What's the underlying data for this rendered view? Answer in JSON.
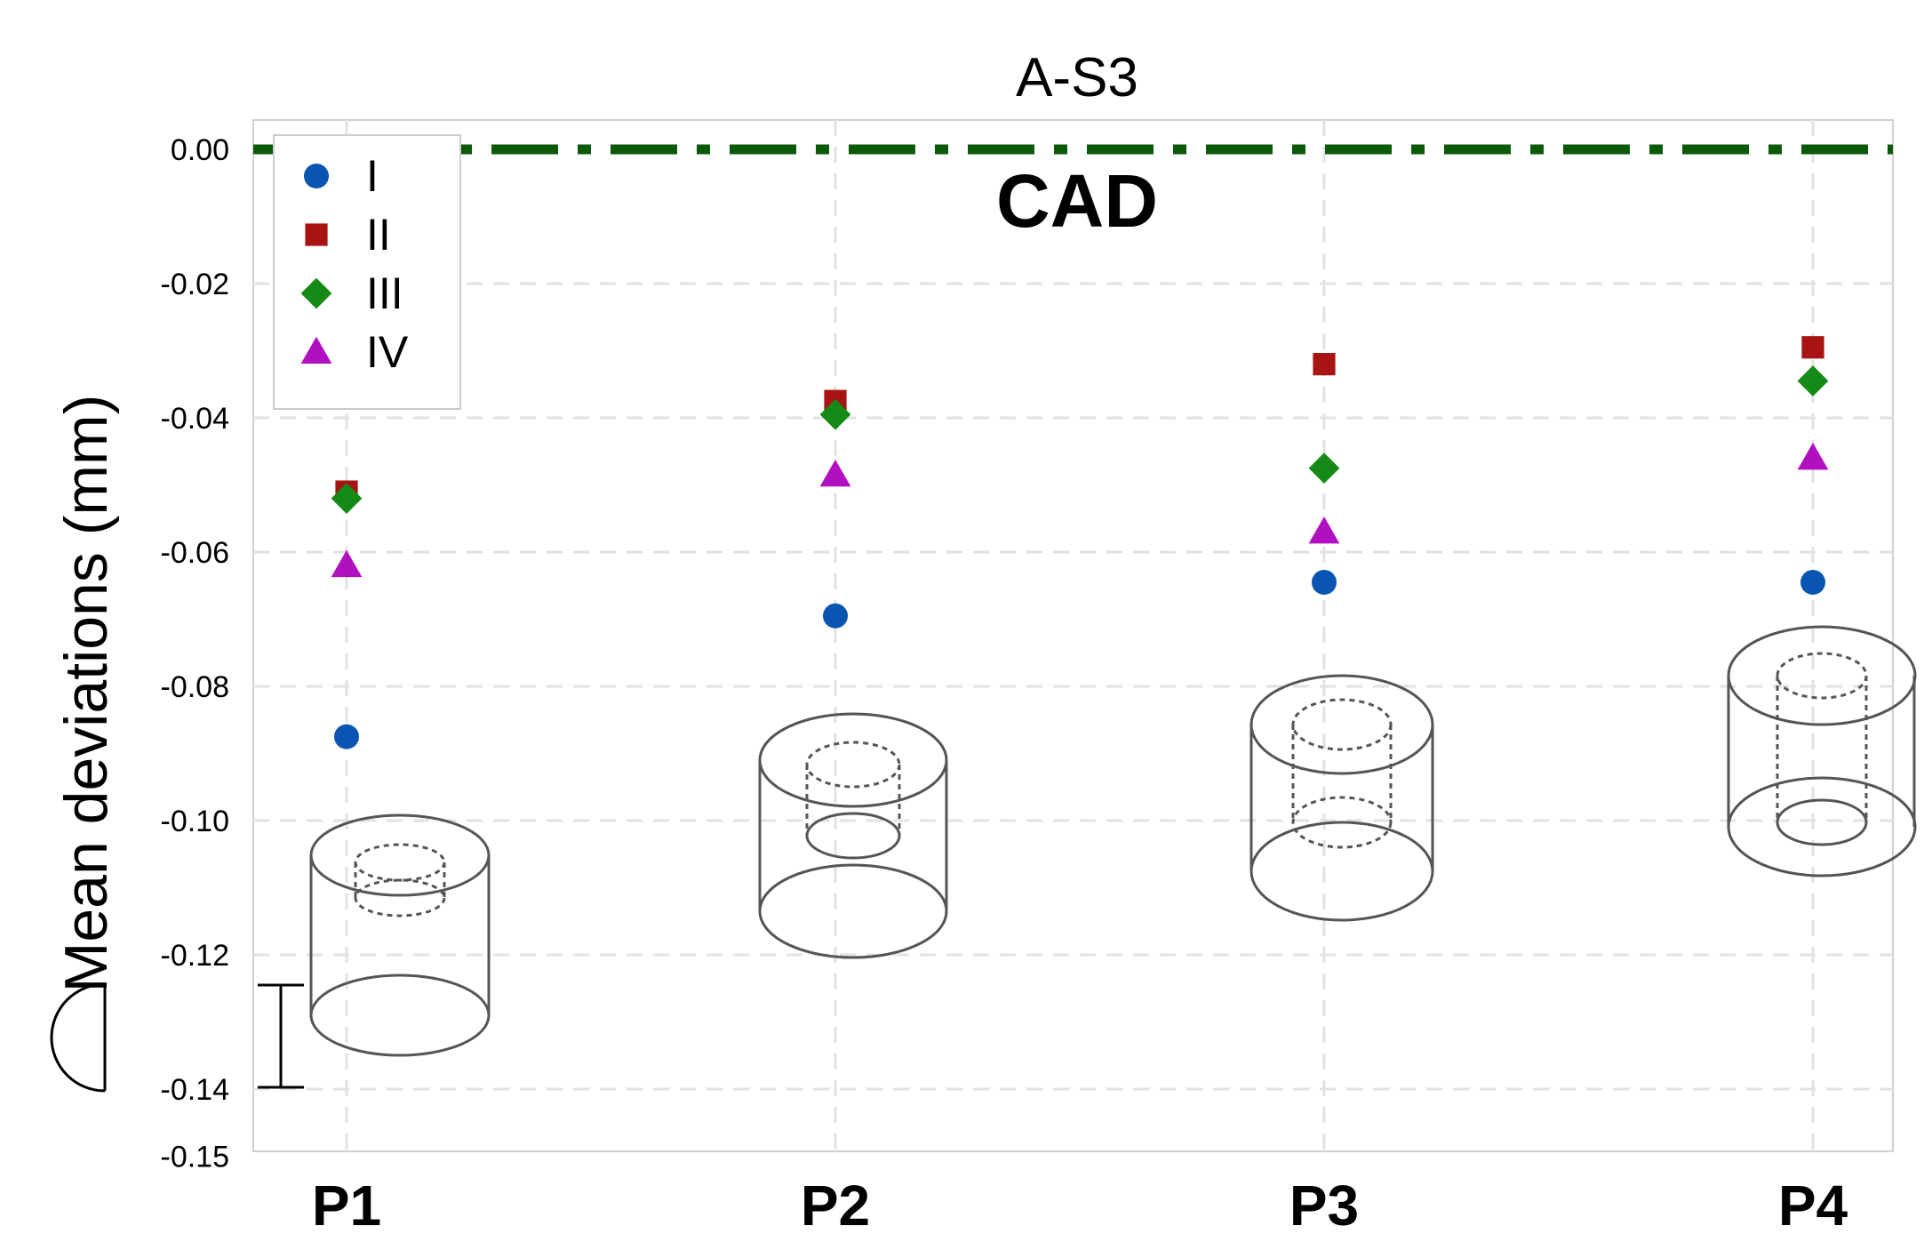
{
  "chart_data": {
    "type": "scatter",
    "title": "A-S3",
    "xlabel": "",
    "ylabel": "Mean deviations (mm)",
    "categories": [
      "P1",
      "P2",
      "P3",
      "P4"
    ],
    "ylim": [
      -0.15,
      0.0
    ],
    "yticks": [
      0.0,
      -0.02,
      -0.04,
      -0.06,
      -0.08,
      -0.1,
      -0.12,
      -0.14,
      -0.15
    ],
    "ytick_labels": [
      "0.00",
      "-0.02",
      "-0.04",
      "-0.06",
      "-0.08",
      "-0.10",
      "-0.12",
      "-0.14",
      "-0.15"
    ],
    "grid": true,
    "legend_position": "top-left",
    "series": [
      {
        "name": "I",
        "marker": "circle",
        "color": "#0a55b2",
        "values": [
          -0.0875,
          -0.0695,
          -0.0645,
          -0.0645
        ]
      },
      {
        "name": "II",
        "marker": "square",
        "color": "#a81414",
        "values": [
          -0.051,
          -0.0375,
          -0.032,
          -0.0295
        ]
      },
      {
        "name": "III",
        "marker": "diamond",
        "color": "#168a16",
        "values": [
          -0.052,
          -0.0395,
          -0.0475,
          -0.0345
        ]
      },
      {
        "name": "IV",
        "marker": "triangle",
        "color": "#b010c0",
        "values": [
          -0.062,
          -0.0485,
          -0.057,
          -0.046
        ]
      }
    ],
    "reference_line": {
      "label": "CAD",
      "value": 0.0,
      "color": "#0a5a0a",
      "label_color": "#0b6b3c"
    }
  }
}
